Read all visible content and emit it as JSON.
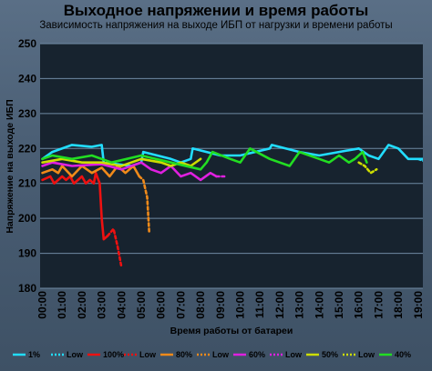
{
  "chart_data": {
    "type": "line",
    "title": "Выходное напряжении и время работы",
    "subtitle": "Зависимость напряжения на выходе ИБП от нагрузки и времени работы",
    "xlabel": "Время работы от батареи",
    "ylabel": "Напряжение на выходе ИБП",
    "ylim": [
      180,
      250
    ],
    "yticks": [
      "180",
      "190",
      "200",
      "210",
      "220",
      "230",
      "240",
      "250"
    ],
    "xticks": [
      "00:00",
      "01:00",
      "02:00",
      "03:00",
      "04:00",
      "05:00",
      "06:00",
      "07:00",
      "08:00",
      "09:00",
      "10:00",
      "11:00",
      "12:00",
      "13:00",
      "14:00",
      "15:00",
      "16:00",
      "17:00",
      "18:00",
      "19:00"
    ],
    "xlim_hours": [
      0,
      19
    ],
    "grid": "horizontal",
    "legend_position": "bottom",
    "series": [
      {
        "name": "1%",
        "color": "#22ddff",
        "style": "solid",
        "points": [
          [
            0.0,
            217
          ],
          [
            0.5,
            219
          ],
          [
            1.5,
            221
          ],
          [
            2.5,
            220.5
          ],
          [
            3.0,
            221
          ],
          [
            3.1,
            216
          ],
          [
            4.5,
            215
          ],
          [
            5.0,
            216
          ],
          [
            5.1,
            219
          ],
          [
            6.5,
            217
          ],
          [
            7.0,
            216
          ],
          [
            7.5,
            217
          ],
          [
            7.6,
            220
          ],
          [
            9.0,
            218
          ],
          [
            10.0,
            218
          ],
          [
            11.5,
            220
          ],
          [
            11.6,
            221
          ],
          [
            13.0,
            219
          ],
          [
            14.0,
            218
          ],
          [
            15.0,
            219
          ],
          [
            16.0,
            220
          ],
          [
            16.5,
            218
          ],
          [
            17.0,
            217
          ],
          [
            17.5,
            221
          ],
          [
            18.0,
            220
          ],
          [
            18.5,
            217
          ],
          [
            19.5,
            217
          ]
        ]
      },
      {
        "name": "Low",
        "color": "#22ddff",
        "style": "dashed",
        "points": [
          [
            19.0,
            217
          ],
          [
            19.5,
            216
          ]
        ]
      },
      {
        "name": "100%",
        "color": "#ee1111",
        "style": "solid",
        "points": [
          [
            0.0,
            211
          ],
          [
            0.4,
            212
          ],
          [
            0.6,
            210
          ],
          [
            0.8,
            211
          ],
          [
            1.0,
            212
          ],
          [
            1.2,
            211
          ],
          [
            1.4,
            212
          ],
          [
            1.6,
            210
          ],
          [
            1.8,
            211
          ],
          [
            2.0,
            212
          ],
          [
            2.2,
            210
          ],
          [
            2.4,
            211
          ],
          [
            2.6,
            210
          ],
          [
            2.7,
            213
          ],
          [
            2.9,
            210
          ],
          [
            3.0,
            200
          ],
          [
            3.1,
            194
          ],
          [
            3.3,
            195
          ]
        ]
      },
      {
        "name": "Low",
        "color": "#ee1111",
        "style": "dashed",
        "points": [
          [
            3.3,
            195
          ],
          [
            3.6,
            197
          ],
          [
            3.8,
            192
          ],
          [
            4.0,
            186
          ]
        ]
      },
      {
        "name": "80%",
        "color": "#f08a1a",
        "style": "solid",
        "points": [
          [
            0.0,
            213
          ],
          [
            0.5,
            214
          ],
          [
            0.8,
            213
          ],
          [
            1.0,
            215
          ],
          [
            1.5,
            212
          ],
          [
            2.0,
            215
          ],
          [
            2.5,
            213
          ],
          [
            3.0,
            214.5
          ],
          [
            3.4,
            212
          ],
          [
            3.8,
            215
          ],
          [
            4.2,
            213
          ],
          [
            4.6,
            215
          ],
          [
            4.9,
            212
          ]
        ]
      },
      {
        "name": "Low",
        "color": "#f08a1a",
        "style": "dashed",
        "points": [
          [
            4.9,
            212
          ],
          [
            5.1,
            211
          ],
          [
            5.3,
            206
          ],
          [
            5.4,
            196
          ]
        ]
      },
      {
        "name": "60%",
        "color": "#e020e0",
        "style": "solid",
        "points": [
          [
            0.0,
            215
          ],
          [
            0.5,
            216
          ],
          [
            1.5,
            215
          ],
          [
            3.0,
            215.5
          ],
          [
            4.0,
            214
          ],
          [
            5.0,
            216
          ],
          [
            5.5,
            214
          ],
          [
            6.0,
            213
          ],
          [
            6.5,
            215
          ],
          [
            7.0,
            212
          ],
          [
            7.5,
            213
          ],
          [
            8.0,
            211
          ],
          [
            8.5,
            213
          ],
          [
            8.8,
            212
          ]
        ]
      },
      {
        "name": "Low",
        "color": "#e020e0",
        "style": "dashed",
        "points": [
          [
            8.8,
            212
          ],
          [
            9.2,
            212
          ]
        ]
      },
      {
        "name": "50%",
        "color": "#ccdd00",
        "style": "solid",
        "points": [
          [
            0.0,
            216
          ],
          [
            1.0,
            217
          ],
          [
            2.0,
            216
          ],
          [
            3.0,
            216
          ],
          [
            4.0,
            215
          ],
          [
            5.0,
            217
          ],
          [
            6.0,
            216
          ],
          [
            6.5,
            215
          ],
          [
            7.0,
            216
          ],
          [
            7.5,
            215
          ],
          [
            8.0,
            217
          ]
        ]
      },
      {
        "name": "Low",
        "color": "#ccdd00",
        "style": "dashed",
        "points": [
          [
            16.0,
            216
          ],
          [
            16.3,
            215
          ],
          [
            16.6,
            213
          ],
          [
            16.9,
            214
          ]
        ]
      },
      {
        "name": "40%",
        "color": "#22dd22",
        "style": "solid",
        "points": [
          [
            0.0,
            217
          ],
          [
            0.5,
            218
          ],
          [
            1.5,
            217
          ],
          [
            2.5,
            218
          ],
          [
            3.5,
            216
          ],
          [
            5.0,
            218
          ],
          [
            6.5,
            216
          ],
          [
            8.0,
            214
          ],
          [
            8.3,
            216
          ],
          [
            8.6,
            219
          ],
          [
            9.5,
            217
          ],
          [
            10.0,
            216
          ],
          [
            10.5,
            220
          ],
          [
            11.5,
            217
          ],
          [
            12.5,
            215
          ],
          [
            13.0,
            219
          ],
          [
            14.0,
            217
          ],
          [
            14.5,
            216
          ],
          [
            15.0,
            218
          ],
          [
            15.5,
            216
          ],
          [
            15.8,
            217
          ],
          [
            16.2,
            219
          ],
          [
            16.4,
            216
          ]
        ]
      }
    ],
    "legend": [
      {
        "label": "1%",
        "color": "#22ddff",
        "style": "solid"
      },
      {
        "label": "Low",
        "color": "#22ddff",
        "style": "dashed"
      },
      {
        "label": "100%",
        "color": "#ee1111",
        "style": "solid"
      },
      {
        "label": "Low",
        "color": "#ee1111",
        "style": "dashed"
      },
      {
        "label": "80%",
        "color": "#f08a1a",
        "style": "solid"
      },
      {
        "label": "Low",
        "color": "#f08a1a",
        "style": "dashed"
      },
      {
        "label": "60%",
        "color": "#e020e0",
        "style": "solid"
      },
      {
        "label": "Low",
        "color": "#e020e0",
        "style": "dashed"
      },
      {
        "label": "50%",
        "color": "#ccdd00",
        "style": "solid"
      },
      {
        "label": "Low",
        "color": "#ccdd00",
        "style": "dashed"
      },
      {
        "label": "40%",
        "color": "#22dd22",
        "style": "solid"
      }
    ]
  }
}
